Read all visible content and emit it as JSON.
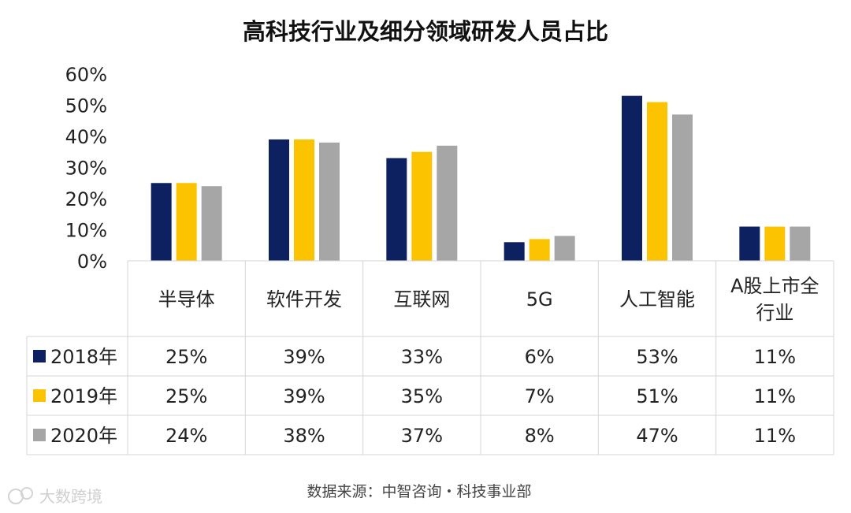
{
  "chart_data": {
    "type": "bar",
    "title": "高科技行业及细分领域研发人员占比",
    "categories": [
      "半导体",
      "软件开发",
      "互联网",
      "5G",
      "人工智能",
      "A股上市全行业"
    ],
    "category_lines": [
      [
        "半导体"
      ],
      [
        "软件开发"
      ],
      [
        "互联网"
      ],
      [
        "5G"
      ],
      [
        "人工智能"
      ],
      [
        "A股上市全",
        "行业"
      ]
    ],
    "series": [
      {
        "name": "2018年",
        "values": [
          25,
          39,
          33,
          6,
          53,
          11
        ],
        "labels": [
          "25%",
          "39%",
          "33%",
          "6%",
          "53%",
          "11%"
        ],
        "color": "#0d2160"
      },
      {
        "name": "2019年",
        "values": [
          25,
          39,
          35,
          7,
          51,
          11
        ],
        "labels": [
          "25%",
          "39%",
          "35%",
          "7%",
          "51%",
          "11%"
        ],
        "color": "#fcc400"
      },
      {
        "name": "2020年",
        "values": [
          24,
          38,
          37,
          8,
          47,
          11
        ],
        "labels": [
          "24%",
          "38%",
          "37%",
          "8%",
          "47%",
          "11%"
        ],
        "color": "#a6a6a6"
      }
    ],
    "ylim": [
      0,
      60
    ],
    "yticks": [
      "0%",
      "10%",
      "20%",
      "30%",
      "40%",
      "50%",
      "60%"
    ],
    "grid": false,
    "legend": "data-table",
    "source": "数据来源：中智咨询・科技事业部"
  },
  "watermark": "大数跨境",
  "watermark_icon": "wechat-logo-icon"
}
